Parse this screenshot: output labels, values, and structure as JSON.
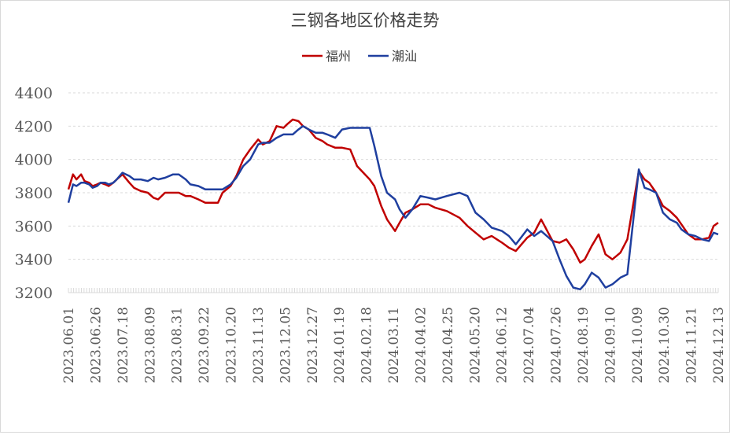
{
  "chart_data": {
    "type": "line",
    "title": "三钢各地区价格走势",
    "xlabel": "",
    "ylabel": "",
    "ylim": [
      3200,
      4400
    ],
    "yticks": [
      3200,
      3400,
      3600,
      3800,
      4000,
      4200,
      4400
    ],
    "grid": "horizontal dashed",
    "legend_position": "top-center",
    "x_tick_labels": [
      "2023.06.01",
      "2023.06.26",
      "2023.07.18",
      "2023.08.09",
      "2023.08.31",
      "2023.09.22",
      "2023.10.20",
      "2023.11.13",
      "2023.12.05",
      "2023.12.27",
      "2024.01.19",
      "2024.02.18",
      "2024.03.11",
      "2024.04.02",
      "2024.04.25",
      "2024.05.20",
      "2024.06.12",
      "2024.07.04",
      "2024.07.26",
      "2024.08.19",
      "2024.09.10",
      "2024.10.09",
      "2024.10.30",
      "2024.11.21",
      "2024.12.13"
    ],
    "x": [
      "2023-06-01",
      "2023-06-05",
      "2023-06-08",
      "2023-06-12",
      "2023-06-15",
      "2023-06-19",
      "2023-06-22",
      "2023-06-26",
      "2023-06-29",
      "2023-07-03",
      "2023-07-06",
      "2023-07-10",
      "2023-07-13",
      "2023-07-18",
      "2023-07-24",
      "2023-07-28",
      "2023-08-03",
      "2023-08-09",
      "2023-08-14",
      "2023-08-18",
      "2023-08-24",
      "2023-08-31",
      "2023-09-05",
      "2023-09-11",
      "2023-09-15",
      "2023-09-22",
      "2023-09-28",
      "2023-10-09",
      "2023-10-13",
      "2023-10-20",
      "2023-10-25",
      "2023-10-31",
      "2023-11-06",
      "2023-11-13",
      "2023-11-17",
      "2023-11-23",
      "2023-11-29",
      "2023-12-05",
      "2023-12-08",
      "2023-12-13",
      "2023-12-18",
      "2023-12-22",
      "2023-12-27",
      "2024-01-02",
      "2024-01-08",
      "2024-01-12",
      "2024-01-19",
      "2024-01-25",
      "2024-02-01",
      "2024-02-07",
      "2024-02-18",
      "2024-02-22",
      "2024-02-28",
      "2024-03-04",
      "2024-03-11",
      "2024-03-15",
      "2024-03-20",
      "2024-03-26",
      "2024-04-02",
      "2024-04-09",
      "2024-04-15",
      "2024-04-25",
      "2024-05-06",
      "2024-05-13",
      "2024-05-20",
      "2024-05-27",
      "2024-06-03",
      "2024-06-12",
      "2024-06-18",
      "2024-06-24",
      "2024-07-04",
      "2024-07-10",
      "2024-07-16",
      "2024-07-26",
      "2024-08-01",
      "2024-08-07",
      "2024-08-13",
      "2024-08-19",
      "2024-08-23",
      "2024-08-29",
      "2024-09-04",
      "2024-09-10",
      "2024-09-16",
      "2024-09-23",
      "2024-09-29",
      "2024-10-09",
      "2024-10-14",
      "2024-10-18",
      "2024-10-24",
      "2024-10-30",
      "2024-11-05",
      "2024-11-11",
      "2024-11-15",
      "2024-11-21",
      "2024-11-27",
      "2024-12-03",
      "2024-12-09",
      "2024-12-13",
      "2024-12-17"
    ],
    "series": [
      {
        "name": "福州",
        "color": "#c00000",
        "values": [
          3820,
          3910,
          3880,
          3910,
          3870,
          3860,
          3840,
          3850,
          3860,
          3850,
          3840,
          3860,
          3880,
          3910,
          3860,
          3830,
          3810,
          3800,
          3770,
          3760,
          3800,
          3800,
          3800,
          3780,
          3780,
          3760,
          3740,
          3740,
          3800,
          3840,
          3900,
          4000,
          4060,
          4120,
          4090,
          4110,
          4200,
          4190,
          4210,
          4240,
          4230,
          4200,
          4180,
          4130,
          4110,
          4090,
          4070,
          4070,
          4060,
          3960,
          3880,
          3840,
          3720,
          3640,
          3570,
          3620,
          3680,
          3700,
          3730,
          3730,
          3710,
          3690,
          3650,
          3600,
          3560,
          3520,
          3540,
          3500,
          3470,
          3450,
          3530,
          3560,
          3640,
          3510,
          3500,
          3520,
          3460,
          3380,
          3400,
          3480,
          3550,
          3430,
          3400,
          3440,
          3520,
          3930,
          3880,
          3860,
          3800,
          3720,
          3690,
          3650,
          3610,
          3550,
          3520,
          3520,
          3530,
          3600,
          3620
        ]
      },
      {
        "name": "潮汕",
        "color": "#1f3f9f",
        "values": [
          3740,
          3850,
          3840,
          3860,
          3860,
          3850,
          3830,
          3840,
          3860,
          3860,
          3850,
          3860,
          3880,
          3920,
          3900,
          3880,
          3880,
          3870,
          3890,
          3880,
          3890,
          3910,
          3910,
          3880,
          3850,
          3840,
          3820,
          3820,
          3820,
          3850,
          3890,
          3960,
          4000,
          4090,
          4100,
          4100,
          4130,
          4150,
          4150,
          4150,
          4180,
          4200,
          4180,
          4160,
          4160,
          4150,
          4130,
          4180,
          4190,
          4190,
          4190,
          4080,
          3900,
          3800,
          3760,
          3700,
          3650,
          3700,
          3780,
          3770,
          3760,
          3780,
          3800,
          3780,
          3680,
          3640,
          3590,
          3570,
          3540,
          3490,
          3580,
          3540,
          3570,
          3510,
          3400,
          3300,
          3230,
          3220,
          3250,
          3320,
          3290,
          3230,
          3250,
          3290,
          3310,
          3940,
          3830,
          3820,
          3800,
          3680,
          3640,
          3620,
          3580,
          3550,
          3540,
          3520,
          3510,
          3560,
          3550
        ]
      }
    ]
  }
}
